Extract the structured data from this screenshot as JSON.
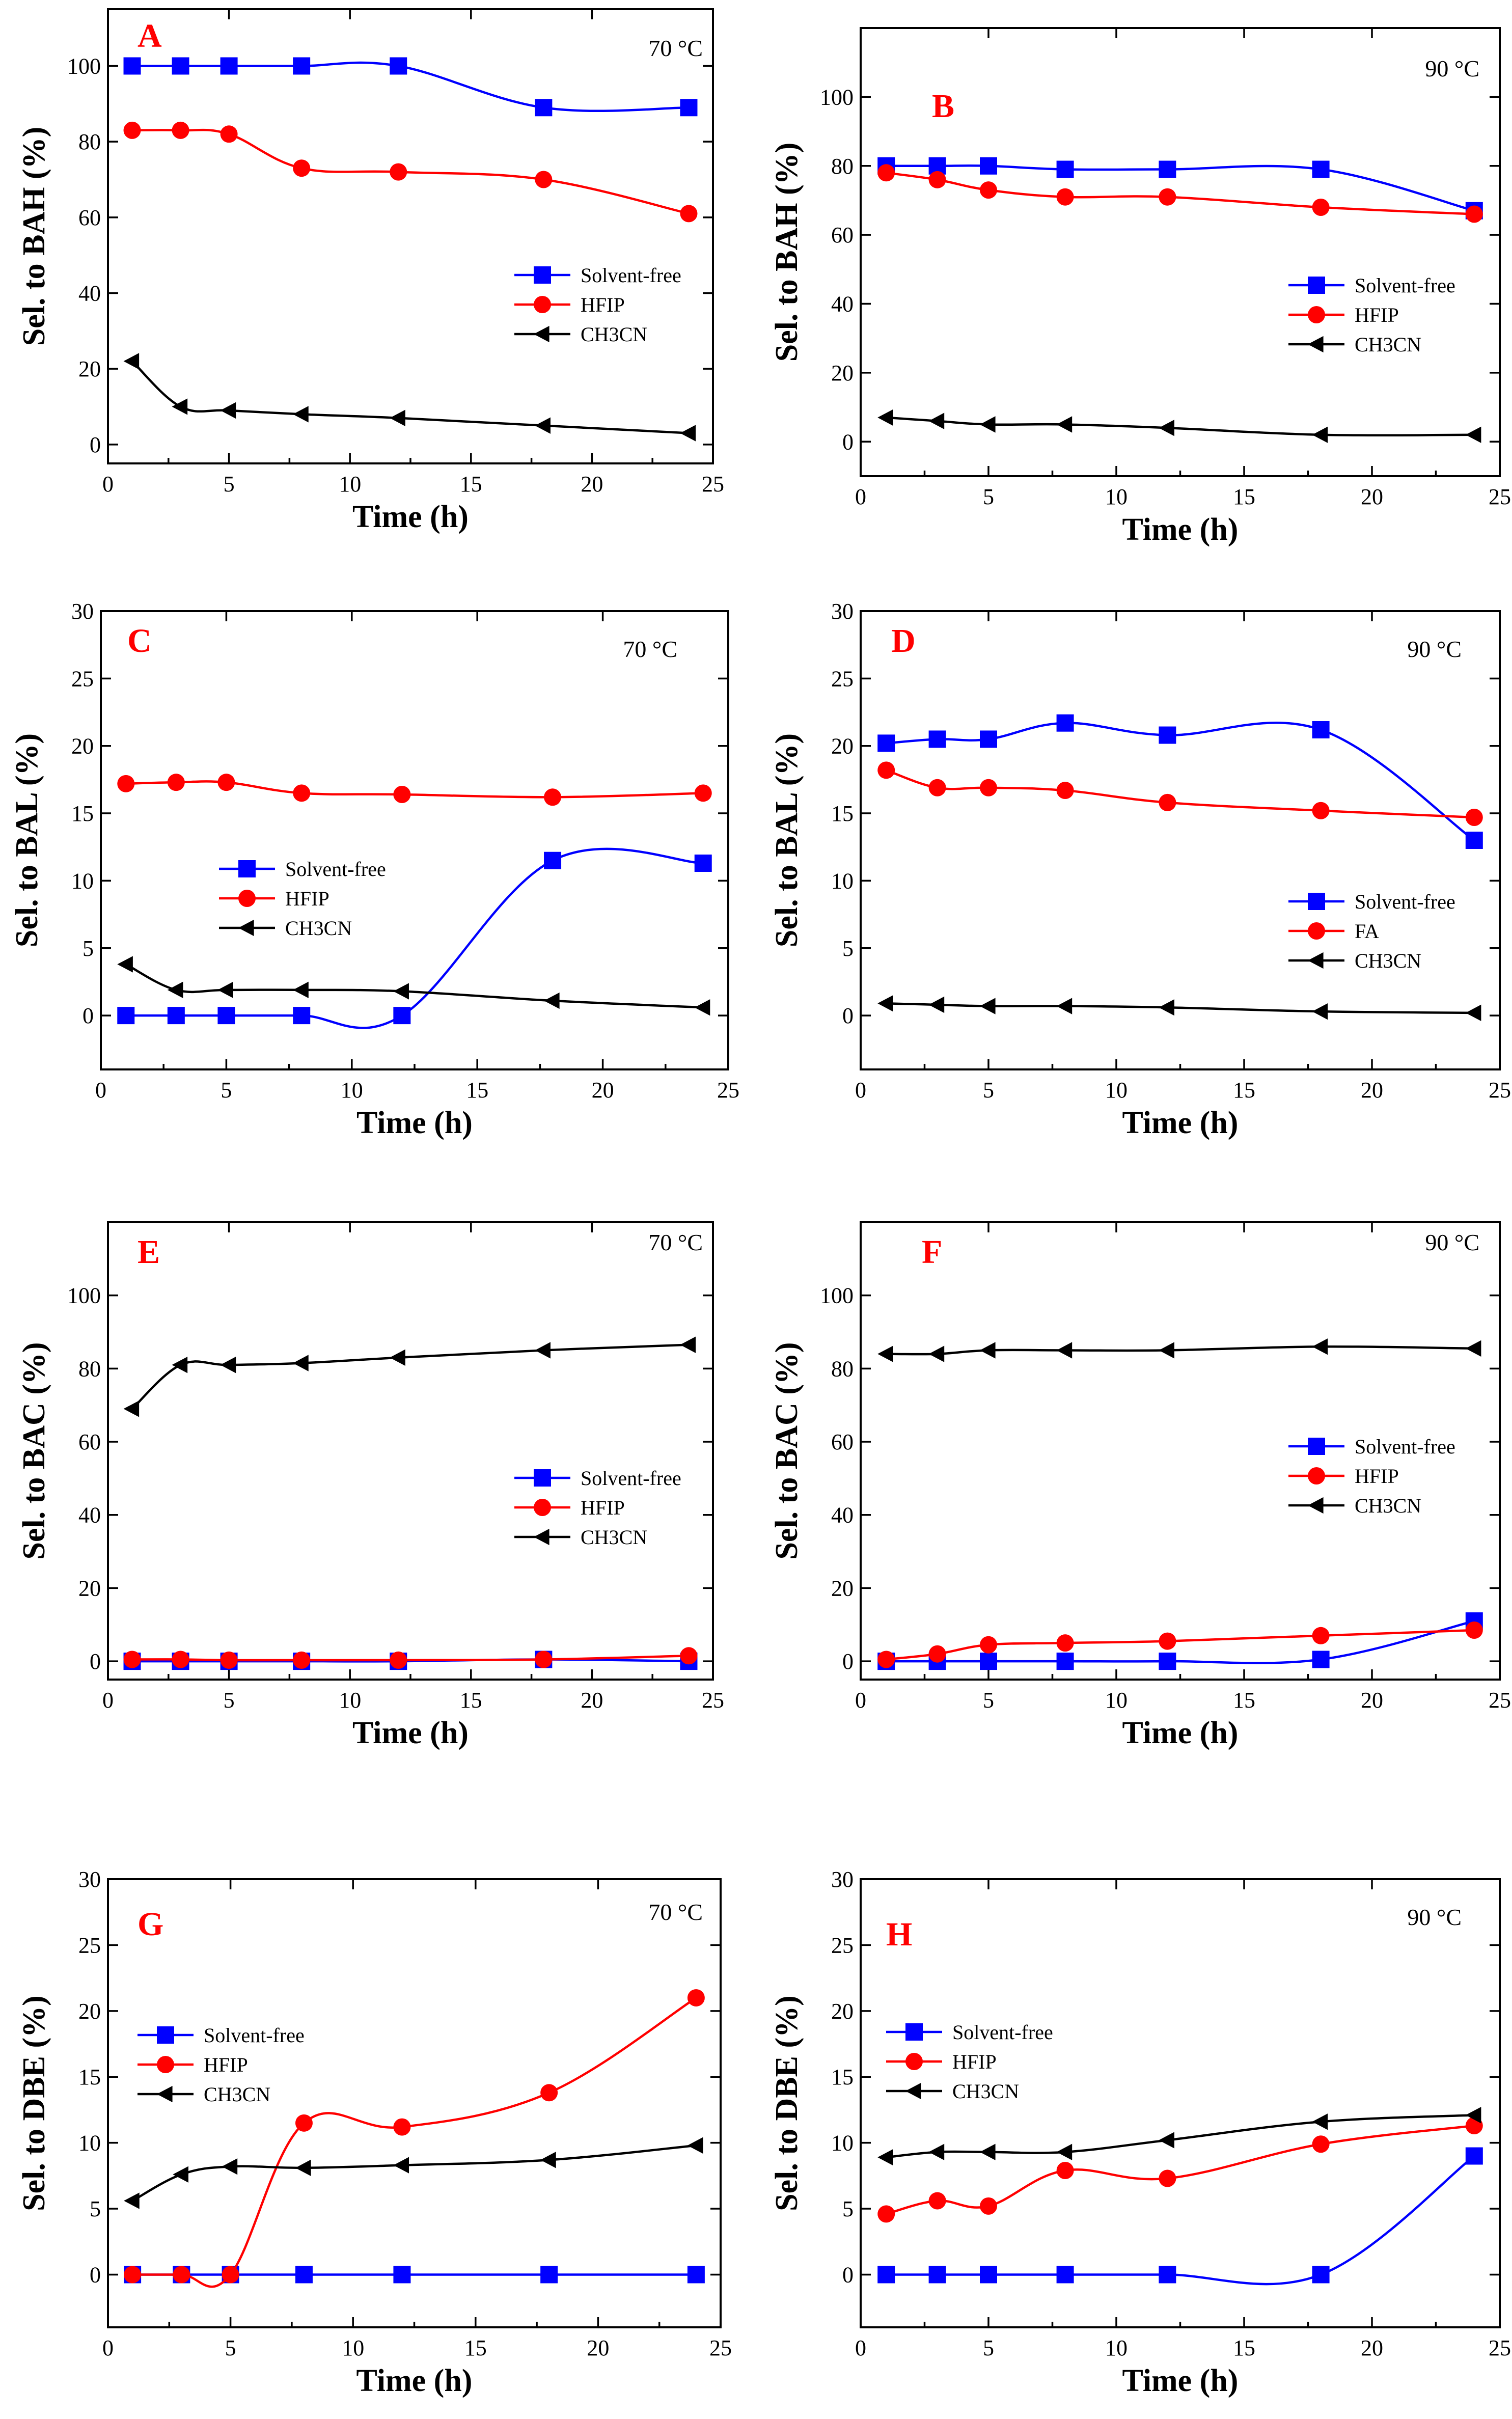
{
  "chart_data": [
    {
      "id": "A",
      "type": "line",
      "panel_label": "A",
      "temperature": "70 °C",
      "xlabel": "Time (h)",
      "ylabel": "Sel. to BAH (%)",
      "xlim": [
        0,
        25
      ],
      "ylim": [
        -5,
        115
      ],
      "xticks": [
        0,
        5,
        10,
        15,
        20,
        25
      ],
      "yticks": [
        0,
        20,
        40,
        60,
        80,
        100
      ],
      "legend_position": "middle-right",
      "series": [
        {
          "name": "Solvent-free",
          "color": "#0000ff",
          "marker": "square",
          "x": [
            1,
            3,
            5,
            8,
            12,
            18,
            24
          ],
          "y": [
            100,
            100,
            100,
            100,
            100,
            89,
            89
          ]
        },
        {
          "name": "HFIP",
          "color": "#ff0000",
          "marker": "circle",
          "x": [
            1,
            3,
            5,
            8,
            12,
            18,
            24
          ],
          "y": [
            83,
            83,
            82,
            73,
            72,
            70,
            61
          ]
        },
        {
          "name": "CH3CN",
          "color": "#000000",
          "marker": "triangle-left",
          "x": [
            1,
            3,
            5,
            8,
            12,
            18,
            24
          ],
          "y": [
            22,
            10,
            9,
            8,
            7,
            5,
            3
          ]
        }
      ]
    },
    {
      "id": "B",
      "type": "line",
      "panel_label": "B",
      "temperature": "90 °C",
      "xlabel": "Time (h)",
      "ylabel": "Sel. to BAH (%)",
      "xlim": [
        0,
        25
      ],
      "ylim": [
        -10,
        120
      ],
      "xticks": [
        0,
        5,
        10,
        15,
        20,
        25
      ],
      "yticks": [
        0,
        20,
        40,
        60,
        80,
        100
      ],
      "legend_position": "middle-right",
      "series": [
        {
          "name": "Solvent-free",
          "color": "#0000ff",
          "marker": "square",
          "x": [
            1,
            3,
            5,
            8,
            12,
            18,
            24
          ],
          "y": [
            80,
            80,
            80,
            79,
            79,
            79,
            67
          ]
        },
        {
          "name": "HFIP",
          "color": "#ff0000",
          "marker": "circle",
          "x": [
            1,
            3,
            5,
            8,
            12,
            18,
            24
          ],
          "y": [
            78,
            76,
            73,
            71,
            71,
            68,
            66
          ]
        },
        {
          "name": "CH3CN",
          "color": "#000000",
          "marker": "triangle-left",
          "x": [
            1,
            3,
            5,
            8,
            12,
            18,
            24
          ],
          "y": [
            7,
            6,
            5,
            5,
            4,
            2,
            2
          ]
        }
      ]
    },
    {
      "id": "C",
      "type": "line",
      "panel_label": "C",
      "temperature": "70 °C",
      "xlabel": "Time (h)",
      "ylabel": "Sel. to BAL (%)",
      "xlim": [
        0,
        25
      ],
      "ylim": [
        -4,
        30
      ],
      "xticks": [
        0,
        5,
        10,
        15,
        20,
        25
      ],
      "yticks": [
        0,
        5,
        10,
        15,
        20,
        25,
        30
      ],
      "legend_position": "center-left",
      "series": [
        {
          "name": "Solvent-free",
          "color": "#0000ff",
          "marker": "square",
          "x": [
            1,
            3,
            5,
            8,
            12,
            18,
            24
          ],
          "y": [
            0,
            0,
            0,
            0,
            0,
            11.5,
            11.3
          ]
        },
        {
          "name": "HFIP",
          "color": "#ff0000",
          "marker": "circle",
          "x": [
            1,
            3,
            5,
            8,
            12,
            18,
            24
          ],
          "y": [
            17.2,
            17.3,
            17.3,
            16.5,
            16.4,
            16.2,
            16.5
          ]
        },
        {
          "name": "CH3CN",
          "color": "#000000",
          "marker": "triangle-left",
          "x": [
            1,
            3,
            5,
            8,
            12,
            18,
            24
          ],
          "y": [
            3.8,
            1.9,
            1.9,
            1.9,
            1.8,
            1.1,
            0.6
          ]
        }
      ]
    },
    {
      "id": "D",
      "type": "line",
      "panel_label": "D",
      "temperature": "90 °C",
      "xlabel": "Time (h)",
      "ylabel": "Sel. to BAL (%)",
      "xlim": [
        0,
        25
      ],
      "ylim": [
        -4,
        30
      ],
      "xticks": [
        0,
        5,
        10,
        15,
        20,
        25
      ],
      "yticks": [
        0,
        5,
        10,
        15,
        20,
        25,
        30
      ],
      "legend_position": "bottom-right",
      "series": [
        {
          "name": "Solvent-free",
          "color": "#0000ff",
          "marker": "square",
          "x": [
            1,
            3,
            5,
            8,
            12,
            18,
            24
          ],
          "y": [
            20.2,
            20.5,
            20.5,
            21.7,
            20.8,
            21.2,
            13.0
          ]
        },
        {
          "name": "FA",
          "color": "#ff0000",
          "marker": "circle",
          "x": [
            1,
            3,
            5,
            8,
            12,
            18,
            24
          ],
          "y": [
            18.2,
            16.9,
            16.9,
            16.7,
            15.8,
            15.2,
            14.7
          ]
        },
        {
          "name": "CH3CN",
          "color": "#000000",
          "marker": "triangle-left",
          "x": [
            1,
            3,
            5,
            8,
            12,
            18,
            24
          ],
          "y": [
            0.9,
            0.8,
            0.7,
            0.7,
            0.6,
            0.3,
            0.2
          ]
        }
      ]
    },
    {
      "id": "E",
      "type": "line",
      "panel_label": "E",
      "temperature": "70 °C",
      "xlabel": "Time (h)",
      "ylabel": "Sel. to BAC (%)",
      "xlim": [
        0,
        25
      ],
      "ylim": [
        -5,
        120
      ],
      "xticks": [
        0,
        5,
        10,
        15,
        20,
        25
      ],
      "yticks": [
        0,
        20,
        40,
        60,
        80,
        100
      ],
      "legend_position": "middle-right",
      "series": [
        {
          "name": "Solvent-free",
          "color": "#0000ff",
          "marker": "square",
          "x": [
            1,
            3,
            5,
            8,
            12,
            18,
            24
          ],
          "y": [
            0,
            0,
            0,
            0,
            0,
            0.5,
            0
          ]
        },
        {
          "name": "HFIP",
          "color": "#ff0000",
          "marker": "circle",
          "x": [
            1,
            3,
            5,
            8,
            12,
            18,
            24
          ],
          "y": [
            0.5,
            0.5,
            0.3,
            0.3,
            0.3,
            0.5,
            1.5
          ]
        },
        {
          "name": "CH3CN",
          "color": "#000000",
          "marker": "triangle-left",
          "x": [
            1,
            3,
            5,
            8,
            12,
            18,
            24
          ],
          "y": [
            69,
            81,
            81,
            81.5,
            83,
            85,
            86.5
          ]
        }
      ]
    },
    {
      "id": "F",
      "type": "line",
      "panel_label": "F",
      "temperature": "90 °C",
      "xlabel": "Time (h)",
      "ylabel": "Sel. to BAC (%)",
      "xlim": [
        0,
        25
      ],
      "ylim": [
        -5,
        120
      ],
      "xticks": [
        0,
        5,
        10,
        15,
        20,
        25
      ],
      "yticks": [
        0,
        20,
        40,
        60,
        80,
        100
      ],
      "legend_position": "middle-right",
      "series": [
        {
          "name": "Solvent-free",
          "color": "#0000ff",
          "marker": "square",
          "x": [
            1,
            3,
            5,
            8,
            12,
            18,
            24
          ],
          "y": [
            0,
            0,
            0,
            0,
            0,
            0.5,
            11
          ]
        },
        {
          "name": "HFIP",
          "color": "#ff0000",
          "marker": "circle",
          "x": [
            1,
            3,
            5,
            8,
            12,
            18,
            24
          ],
          "y": [
            0.5,
            2,
            4.5,
            5,
            5.5,
            7,
            8.5
          ]
        },
        {
          "name": "CH3CN",
          "color": "#000000",
          "marker": "triangle-left",
          "x": [
            1,
            3,
            5,
            8,
            12,
            18,
            24
          ],
          "y": [
            84,
            84,
            85,
            85,
            85,
            86,
            85.5
          ]
        }
      ]
    },
    {
      "id": "G",
      "type": "line",
      "panel_label": "G",
      "temperature": "70 °C",
      "xlabel": "Time (h)",
      "ylabel": "Sel. to DBE (%)",
      "xlim": [
        0,
        25
      ],
      "ylim": [
        -4,
        30
      ],
      "xticks": [
        0,
        5,
        10,
        15,
        20,
        25
      ],
      "yticks": [
        0,
        5,
        10,
        15,
        20,
        25,
        30
      ],
      "legend_position": "middle-left",
      "series": [
        {
          "name": "Solvent-free",
          "color": "#0000ff",
          "marker": "square",
          "x": [
            1,
            3,
            5,
            8,
            12,
            18,
            24
          ],
          "y": [
            0,
            0,
            0,
            0,
            0,
            0,
            0
          ]
        },
        {
          "name": "HFIP",
          "color": "#ff0000",
          "marker": "circle",
          "x": [
            1,
            3,
            5,
            8,
            12,
            18,
            24
          ],
          "y": [
            0,
            0,
            0,
            11.5,
            11.2,
            13.8,
            21
          ]
        },
        {
          "name": "CH3CN",
          "color": "#000000",
          "marker": "triangle-left",
          "x": [
            1,
            3,
            5,
            8,
            12,
            18,
            24
          ],
          "y": [
            5.6,
            7.6,
            8.2,
            8.1,
            8.3,
            8.7,
            9.8
          ]
        }
      ]
    },
    {
      "id": "H",
      "type": "line",
      "panel_label": "H",
      "temperature": "90 °C",
      "xlabel": "Time (h)",
      "ylabel": "Sel. to DBE (%)",
      "xlim": [
        0,
        25
      ],
      "ylim": [
        -4,
        30
      ],
      "xticks": [
        0,
        5,
        10,
        15,
        20,
        25
      ],
      "yticks": [
        0,
        5,
        10,
        15,
        20,
        25,
        30
      ],
      "legend_position": "middle-left",
      "series": [
        {
          "name": "Solvent-free",
          "color": "#0000ff",
          "marker": "square",
          "x": [
            1,
            3,
            5,
            8,
            12,
            18,
            24
          ],
          "y": [
            0,
            0,
            0,
            0,
            0,
            0,
            9
          ]
        },
        {
          "name": "HFIP",
          "color": "#ff0000",
          "marker": "circle",
          "x": [
            1,
            3,
            5,
            8,
            12,
            18,
            24
          ],
          "y": [
            4.6,
            5.6,
            5.2,
            7.9,
            7.3,
            9.9,
            11.3
          ]
        },
        {
          "name": "CH3CN",
          "color": "#000000",
          "marker": "triangle-left",
          "x": [
            1,
            3,
            5,
            8,
            12,
            18,
            24
          ],
          "y": [
            8.9,
            9.3,
            9.3,
            9.3,
            10.2,
            11.6,
            12.1
          ]
        }
      ]
    }
  ]
}
